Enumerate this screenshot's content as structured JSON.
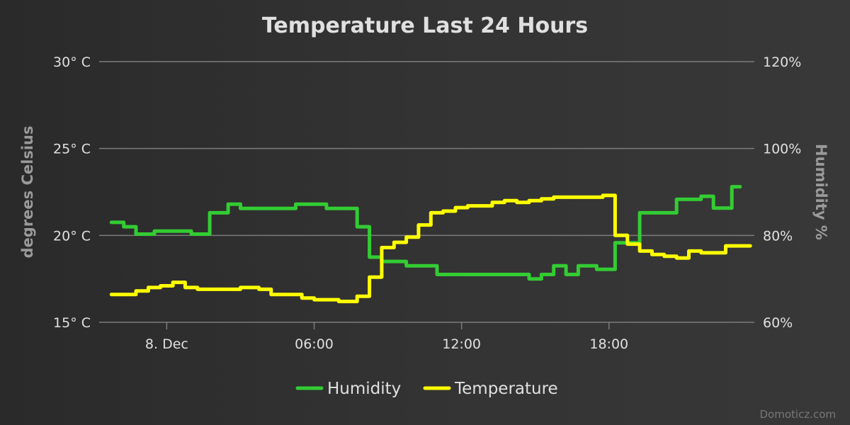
{
  "chart_data": {
    "type": "line",
    "title": "Temperature Last 24 Hours",
    "date_label": "8. Dec",
    "x_ticks": [
      "8. Dec",
      "06:00",
      "12:00",
      "18:00"
    ],
    "x_range": [
      "2023-12-07T21:15",
      "2023-12-08T23:55"
    ],
    "y_left": {
      "label": "degrees Celsius",
      "range": [
        15,
        30
      ],
      "ticks": [
        "15° C",
        "20° C",
        "25° C",
        "30° C"
      ],
      "tick_values": [
        15,
        20,
        25,
        30
      ]
    },
    "y_right": {
      "label": "Humidity %",
      "range": [
        60,
        120
      ],
      "ticks": [
        "60%",
        "80%",
        "100%",
        "120%"
      ],
      "tick_values": [
        60,
        80,
        100,
        120
      ]
    },
    "grid": true,
    "legend_position": "bottom-center",
    "step": true,
    "series": [
      {
        "name": "Humidity",
        "color": "#33cc33",
        "axis": "right",
        "x": [
          "2023-12-07T21:45",
          "2023-12-07T22:15",
          "2023-12-07T22:45",
          "2023-12-07T23:30",
          "2023-12-08T00:00",
          "2023-12-08T01:00",
          "2023-12-08T01:45",
          "2023-12-08T02:30",
          "2023-12-08T03:00",
          "2023-12-08T04:30",
          "2023-12-08T05:15",
          "2023-12-08T06:30",
          "2023-12-08T07:15",
          "2023-12-08T07:45",
          "2023-12-08T08:15",
          "2023-12-08T08:45",
          "2023-12-08T09:45",
          "2023-12-08T11:00",
          "2023-12-08T14:00",
          "2023-12-08T14:45",
          "2023-12-08T15:15",
          "2023-12-08T15:45",
          "2023-12-08T16:15",
          "2023-12-08T16:45",
          "2023-12-08T17:30",
          "2023-12-08T18:15",
          "2023-12-08T19:15",
          "2023-12-08T20:45",
          "2023-12-08T21:15",
          "2023-12-08T21:45",
          "2023-12-08T22:15",
          "2023-12-08T22:45",
          "2023-12-08T23:00",
          "2023-12-08T23:20"
        ],
        "y": [
          83,
          82,
          80.3,
          81,
          81,
          80.3,
          85.2,
          87.2,
          86.2,
          86.2,
          87.2,
          86.2,
          86.2,
          82,
          75,
          74,
          73,
          71,
          71,
          70,
          71,
          73,
          71,
          73,
          72.2,
          78.3,
          85.2,
          88.3,
          88.3,
          89,
          86.3,
          86.3,
          91.2,
          91.2
        ]
      },
      {
        "name": "Temperature",
        "color": "#ffff00",
        "axis": "left",
        "x": [
          "2023-12-07T21:45",
          "2023-12-07T22:15",
          "2023-12-07T22:45",
          "2023-12-07T23:15",
          "2023-12-07T23:45",
          "2023-12-08T00:15",
          "2023-12-08T00:45",
          "2023-12-08T01:15",
          "2023-12-08T02:00",
          "2023-12-08T03:00",
          "2023-12-08T03:45",
          "2023-12-08T04:15",
          "2023-12-08T05:00",
          "2023-12-08T05:30",
          "2023-12-08T06:00",
          "2023-12-08T07:00",
          "2023-12-08T07:15",
          "2023-12-08T07:45",
          "2023-12-08T08:15",
          "2023-12-08T08:45",
          "2023-12-08T09:15",
          "2023-12-08T09:45",
          "2023-12-08T10:15",
          "2023-12-08T10:45",
          "2023-12-08T11:15",
          "2023-12-08T11:45",
          "2023-12-08T12:15",
          "2023-12-08T12:45",
          "2023-12-08T13:15",
          "2023-12-08T13:45",
          "2023-12-08T14:15",
          "2023-12-08T14:45",
          "2023-12-08T15:15",
          "2023-12-08T15:45",
          "2023-12-08T16:15",
          "2023-12-08T16:45",
          "2023-12-08T17:15",
          "2023-12-08T17:45",
          "2023-12-08T17:50",
          "2023-12-08T18:15",
          "2023-12-08T18:45",
          "2023-12-08T19:15",
          "2023-12-08T19:45",
          "2023-12-08T20:15",
          "2023-12-08T20:45",
          "2023-12-08T21:15",
          "2023-12-08T21:45",
          "2023-12-08T22:15",
          "2023-12-08T22:45",
          "2023-12-08T23:15",
          "2023-12-08T23:45"
        ],
        "y": [
          16.6,
          16.6,
          16.8,
          17.0,
          17.1,
          17.3,
          17.0,
          16.9,
          16.9,
          17.0,
          16.9,
          16.6,
          16.6,
          16.4,
          16.3,
          16.2,
          16.2,
          16.5,
          17.6,
          19.3,
          19.6,
          19.9,
          20.6,
          21.3,
          21.4,
          21.6,
          21.7,
          21.7,
          21.9,
          22.0,
          21.9,
          22.0,
          22.1,
          22.2,
          22.2,
          22.2,
          22.2,
          22.3,
          22.3,
          20.0,
          19.5,
          19.1,
          18.9,
          18.8,
          18.7,
          19.1,
          19.0,
          19.0,
          19.4,
          19.4,
          19.4
        ]
      }
    ],
    "credits": "Domoticz.com"
  }
}
